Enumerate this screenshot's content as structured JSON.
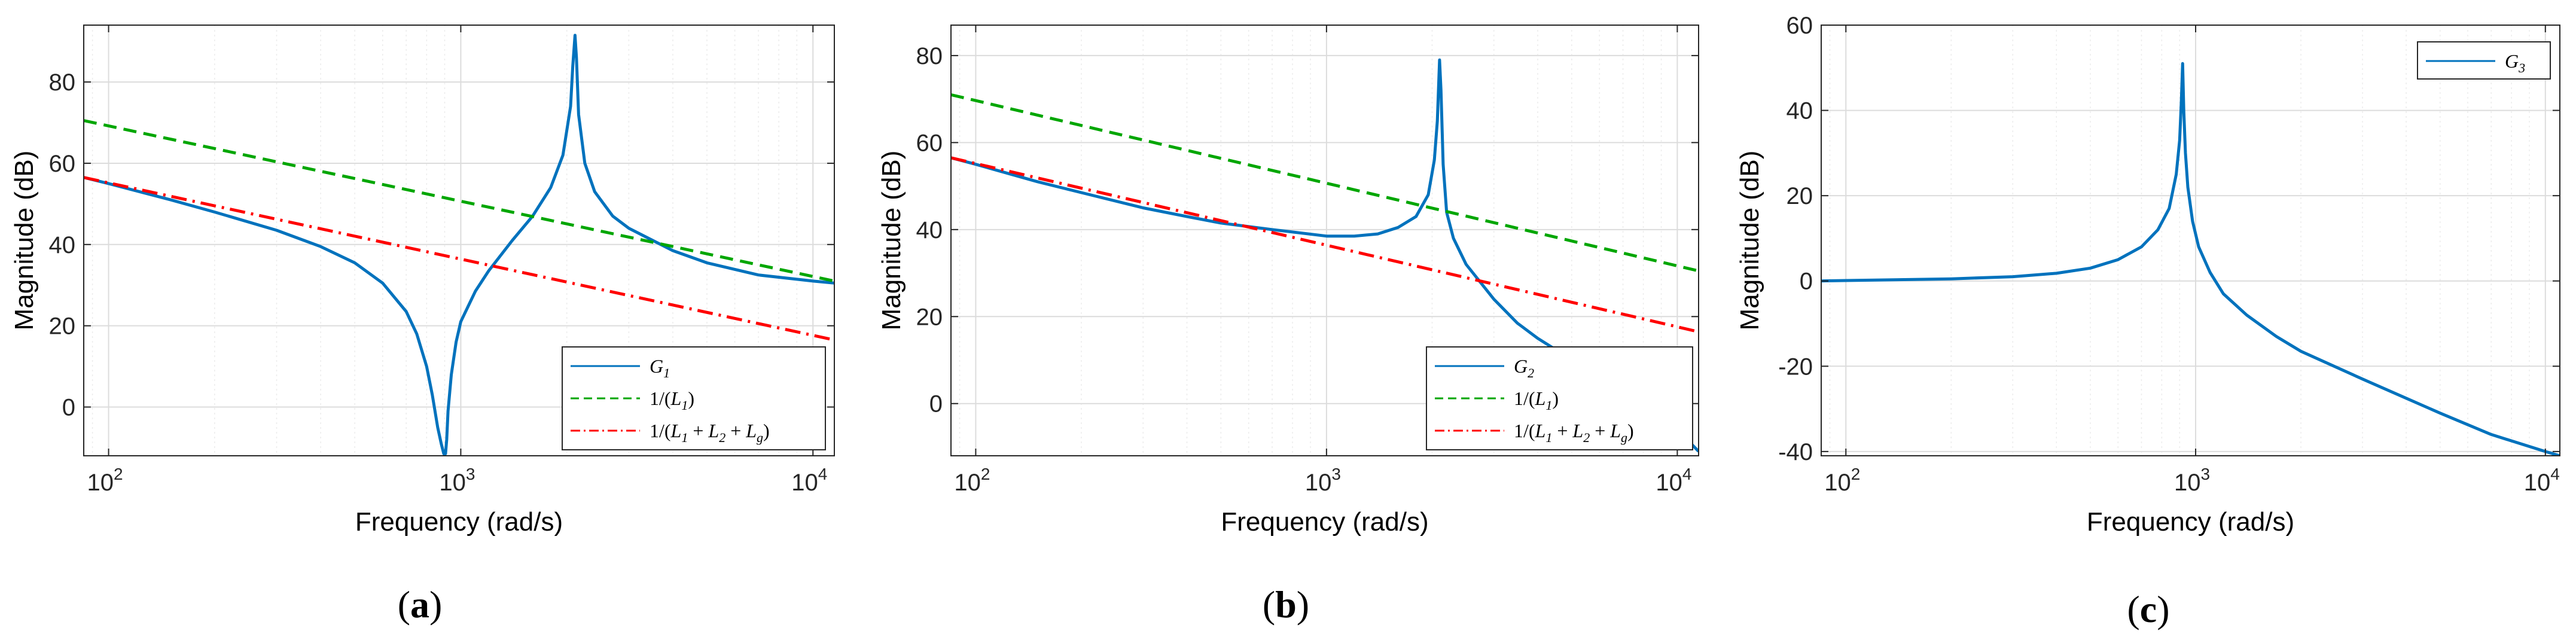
{
  "chart_data": [
    {
      "type": "line",
      "panel_label": {
        "open": "(",
        "letter": "a",
        "close": ")"
      },
      "xlabel": "Frequency  (rad/s)",
      "ylabel": "Magnitude (dB)",
      "xscale": "log",
      "xlim": [
        85,
        11500
      ],
      "ylim": [
        -12,
        94
      ],
      "xticks": [
        {
          "value": 100,
          "base": "10",
          "exp": "2"
        },
        {
          "value": 1000,
          "base": "10",
          "exp": "3"
        },
        {
          "value": 10000,
          "base": "10",
          "exp": "4"
        }
      ],
      "yticks": [
        0,
        20,
        40,
        60,
        80
      ],
      "grid": true,
      "legend_position": "bottom-right",
      "series": [
        {
          "name": "G1",
          "legend": {
            "sym": "G",
            "sub": "1"
          },
          "style": "solid",
          "color": "#0072BD",
          "x": [
            85,
            100,
            150,
            200,
            300,
            400,
            500,
            600,
            700,
            750,
            800,
            830,
            860,
            880,
            895,
            905,
            912,
            920,
            940,
            970,
            1000,
            1100,
            1200,
            1400,
            1600,
            1800,
            1950,
            2050,
            2080,
            2110,
            2130,
            2160,
            2250,
            2400,
            2700,
            3000,
            4000,
            5000,
            7000,
            10000,
            11500
          ],
          "y": [
            56.5,
            55,
            51,
            48,
            43.5,
            39.5,
            35.5,
            30.5,
            23.5,
            18,
            10,
            3,
            -5,
            -9,
            -11.5,
            -11.5,
            -8,
            -1,
            8,
            16,
            21,
            28.5,
            33.5,
            41,
            47,
            54,
            62,
            74,
            84,
            91.5,
            86,
            72,
            60,
            53,
            47,
            44,
            38.5,
            35.5,
            32.5,
            31,
            30.5
          ]
        },
        {
          "name": "1/(L1)",
          "legend": {
            "pre": "1/(",
            "sym": "L",
            "sub": "1",
            "post": ")"
          },
          "style": "dashed",
          "color": "#00A600",
          "x": [
            85,
            11500
          ],
          "y": [
            70.5,
            31
          ]
        },
        {
          "name": "1/(L1+L2+Lg)",
          "legend": {
            "pre": "1/(",
            "parts": [
              {
                "sym": "L",
                "sub": "1"
              },
              {
                "op": " + ",
                "sym": "L",
                "sub": "2"
              },
              {
                "op": " + ",
                "sym": "L",
                "sub": "g"
              }
            ],
            "post": ")"
          },
          "style": "dashdot",
          "color": "#FF0000",
          "x": [
            85,
            11500
          ],
          "y": [
            56.5,
            16.5
          ]
        }
      ]
    },
    {
      "type": "line",
      "panel_label": {
        "open": "(",
        "letter": "b",
        "close": ")"
      },
      "xlabel": "Frequency  (rad/s)",
      "ylabel": "Magnitude (dB)",
      "xscale": "log",
      "xlim": [
        85,
        11500
      ],
      "ylim": [
        -12,
        87
      ],
      "xticks": [
        {
          "value": 100,
          "base": "10",
          "exp": "2"
        },
        {
          "value": 1000,
          "base": "10",
          "exp": "3"
        },
        {
          "value": 10000,
          "base": "10",
          "exp": "4"
        }
      ],
      "yticks": [
        0,
        20,
        40,
        60,
        80
      ],
      "grid": true,
      "legend_position": "bottom-right",
      "series": [
        {
          "name": "G2",
          "legend": {
            "sym": "G",
            "sub": "2"
          },
          "style": "solid",
          "color": "#0072BD",
          "x": [
            85,
            100,
            150,
            200,
            300,
            400,
            500,
            700,
            1000,
            1200,
            1400,
            1600,
            1800,
            1950,
            2030,
            2070,
            2100,
            2120,
            2150,
            2200,
            2300,
            2500,
            3000,
            3500,
            4000,
            4800
          ],
          "y": [
            56.5,
            55,
            51,
            48.5,
            45,
            43,
            41.5,
            40,
            38.5,
            38.5,
            39,
            40.5,
            43,
            48,
            56,
            65,
            79,
            72,
            55,
            44,
            38,
            32,
            24,
            18.5,
            15,
            11
          ]
        },
        {
          "name": "G2-tail",
          "legend": null,
          "style": "solid",
          "color": "#0072BD",
          "x": [
            10300,
            11500
          ],
          "y": [
            -7,
            -11
          ]
        },
        {
          "name": "1/(L1)",
          "legend": {
            "pre": "1/(",
            "sym": "L",
            "sub": "1",
            "post": ")"
          },
          "style": "dashed",
          "color": "#00A600",
          "x": [
            85,
            11500
          ],
          "y": [
            71,
            30.5
          ]
        },
        {
          "name": "1/(L1+L2+Lg)",
          "legend": {
            "pre": "1/(",
            "parts": [
              {
                "sym": "L",
                "sub": "1"
              },
              {
                "op": " + ",
                "sym": "L",
                "sub": "2"
              },
              {
                "op": " + ",
                "sym": "L",
                "sub": "g"
              }
            ],
            "post": ")"
          },
          "style": "dashdot",
          "color": "#FF0000",
          "x": [
            85,
            11500
          ],
          "y": [
            56.5,
            16.5
          ]
        }
      ]
    },
    {
      "type": "line",
      "panel_label": {
        "open": "(",
        "letter": "c",
        "close": ")"
      },
      "xlabel": "Frequency  (rad/s)",
      "ylabel": "Magnitude (dB)",
      "xscale": "log",
      "xlim": [
        85,
        11000
      ],
      "ylim": [
        -41,
        60
      ],
      "xticks": [
        {
          "value": 100,
          "base": "10",
          "exp": "2"
        },
        {
          "value": 1000,
          "base": "10",
          "exp": "3"
        },
        {
          "value": 10000,
          "base": "10",
          "exp": "4"
        }
      ],
      "yticks": [
        -40,
        -20,
        0,
        20,
        40,
        60
      ],
      "grid": true,
      "legend_position": "top-right",
      "series": [
        {
          "name": "G3",
          "legend": {
            "sym": "G",
            "sub": "3"
          },
          "style": "solid",
          "color": "#0072BD",
          "x": [
            85,
            100,
            200,
            300,
            400,
            500,
            600,
            700,
            780,
            840,
            880,
            900,
            910,
            918,
            925,
            935,
            950,
            980,
            1020,
            1100,
            1200,
            1400,
            1700,
            2000,
            3000,
            4000,
            5000,
            7000,
            10000,
            11000
          ],
          "y": [
            0,
            0.1,
            0.5,
            1,
            1.8,
            3,
            5,
            8,
            12,
            17,
            25,
            33,
            42,
            51,
            40,
            30,
            22,
            14,
            8,
            2,
            -3,
            -8,
            -13,
            -16.5,
            -23,
            -27.5,
            -31,
            -36,
            -40,
            -41
          ]
        }
      ]
    }
  ]
}
